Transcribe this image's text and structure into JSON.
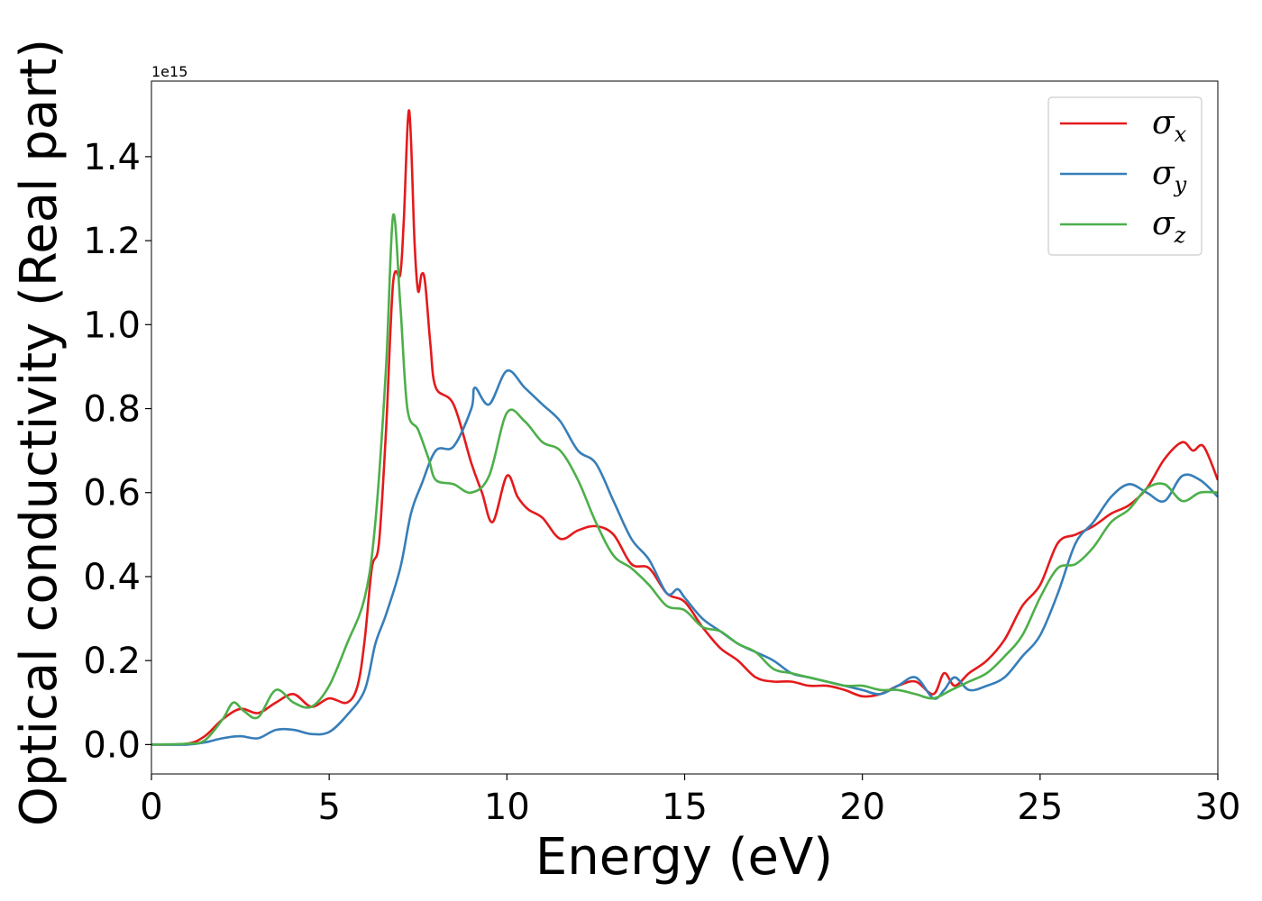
{
  "chart_data": {
    "type": "line",
    "title": "",
    "xlabel": "Energy (eV)",
    "ylabel": "Optical conductivity (Real part)",
    "y_offset_label": "1e15",
    "xlim": [
      0,
      30
    ],
    "ylim": [
      -0.07,
      1.58
    ],
    "x_ticks": [
      0,
      5,
      10,
      15,
      20,
      25,
      30
    ],
    "x_tick_labels": [
      "0",
      "5",
      "10",
      "15",
      "20",
      "25",
      "30"
    ],
    "y_ticks": [
      0.0,
      0.2,
      0.4,
      0.6,
      0.8,
      1.0,
      1.2,
      1.4
    ],
    "y_tick_labels": [
      "0.0",
      "0.2",
      "0.4",
      "0.6",
      "0.8",
      "1.0",
      "1.2",
      "1.4"
    ],
    "grid": false,
    "legend_position": "top-right",
    "series": [
      {
        "name": "σx",
        "legend_main": "σ",
        "legend_sub": "x",
        "color": "#e41a1c",
        "x": [
          0,
          1,
          1.5,
          2,
          2.5,
          3,
          3.5,
          4,
          4.5,
          5,
          5.5,
          5.8,
          6.0,
          6.2,
          6.4,
          6.6,
          6.8,
          7.0,
          7.1,
          7.25,
          7.4,
          7.5,
          7.6,
          7.7,
          7.85,
          8.0,
          8.5,
          9.0,
          9.3,
          9.6,
          10.0,
          10.3,
          10.6,
          11.0,
          11.5,
          12.0,
          12.5,
          13.0,
          13.5,
          14.0,
          14.5,
          15.0,
          15.5,
          16.0,
          16.5,
          17.0,
          17.5,
          18.0,
          18.5,
          19.0,
          19.5,
          20.0,
          20.5,
          21.0,
          21.5,
          22.0,
          22.3,
          22.6,
          23.0,
          23.5,
          24.0,
          24.5,
          25.0,
          25.5,
          26.0,
          26.5,
          27.0,
          27.5,
          28.0,
          28.5,
          29.0,
          29.3,
          29.6,
          30.0
        ],
        "y": [
          0.0,
          0.002,
          0.02,
          0.06,
          0.085,
          0.075,
          0.1,
          0.12,
          0.09,
          0.11,
          0.1,
          0.14,
          0.25,
          0.42,
          0.48,
          0.75,
          1.1,
          1.12,
          1.25,
          1.51,
          1.2,
          1.08,
          1.12,
          1.1,
          0.95,
          0.85,
          0.81,
          0.67,
          0.6,
          0.53,
          0.64,
          0.59,
          0.56,
          0.54,
          0.49,
          0.51,
          0.52,
          0.5,
          0.43,
          0.42,
          0.36,
          0.34,
          0.28,
          0.23,
          0.2,
          0.16,
          0.15,
          0.15,
          0.14,
          0.14,
          0.13,
          0.115,
          0.12,
          0.14,
          0.15,
          0.12,
          0.17,
          0.14,
          0.17,
          0.2,
          0.25,
          0.33,
          0.38,
          0.48,
          0.5,
          0.52,
          0.55,
          0.57,
          0.61,
          0.68,
          0.72,
          0.7,
          0.71,
          0.63
        ]
      },
      {
        "name": "σy",
        "legend_main": "σ",
        "legend_sub": "y",
        "color": "#377eb8",
        "x": [
          0,
          1,
          1.5,
          2,
          2.5,
          3,
          3.5,
          4,
          4.5,
          5,
          5.5,
          6.0,
          6.3,
          6.6,
          7.0,
          7.3,
          7.6,
          8.0,
          8.5,
          9.0,
          9.1,
          9.5,
          10.0,
          10.5,
          11.0,
          11.5,
          12.0,
          12.5,
          13.0,
          13.5,
          14.0,
          14.5,
          14.8,
          15.0,
          15.5,
          16.0,
          16.5,
          17.0,
          17.5,
          18.0,
          18.5,
          19.0,
          19.5,
          20.0,
          20.5,
          21.0,
          21.5,
          22.0,
          22.3,
          22.6,
          23.0,
          23.5,
          24.0,
          24.5,
          25.0,
          25.5,
          26.0,
          26.5,
          27.0,
          27.5,
          28.0,
          28.5,
          29.0,
          29.5,
          30.0
        ],
        "y": [
          0.0,
          0.0,
          0.005,
          0.015,
          0.02,
          0.015,
          0.035,
          0.035,
          0.025,
          0.03,
          0.07,
          0.13,
          0.24,
          0.31,
          0.42,
          0.55,
          0.62,
          0.7,
          0.71,
          0.8,
          0.85,
          0.81,
          0.89,
          0.85,
          0.81,
          0.77,
          0.7,
          0.67,
          0.58,
          0.49,
          0.44,
          0.36,
          0.37,
          0.35,
          0.3,
          0.27,
          0.24,
          0.22,
          0.2,
          0.17,
          0.16,
          0.15,
          0.14,
          0.13,
          0.12,
          0.14,
          0.16,
          0.11,
          0.13,
          0.16,
          0.13,
          0.14,
          0.16,
          0.21,
          0.26,
          0.36,
          0.48,
          0.53,
          0.59,
          0.62,
          0.6,
          0.58,
          0.64,
          0.63,
          0.59
        ]
      },
      {
        "name": "σz",
        "legend_main": "σ",
        "legend_sub": "z",
        "color": "#4daf4a",
        "x": [
          0,
          1,
          1.5,
          2,
          2.3,
          2.6,
          3.0,
          3.5,
          4.0,
          4.5,
          5.0,
          5.5,
          6.0,
          6.3,
          6.6,
          6.8,
          7.0,
          7.2,
          7.5,
          7.8,
          8.0,
          8.5,
          9.0,
          9.5,
          10.0,
          10.5,
          11.0,
          11.5,
          12.0,
          12.5,
          13.0,
          13.5,
          14.0,
          14.5,
          15.0,
          15.5,
          16.0,
          16.5,
          17.0,
          17.5,
          18.0,
          18.5,
          19.0,
          19.5,
          20.0,
          20.5,
          21.0,
          21.5,
          22.0,
          22.5,
          23.0,
          23.5,
          24.0,
          24.5,
          25.0,
          25.5,
          26.0,
          26.5,
          27.0,
          27.5,
          28.0,
          28.5,
          29.0,
          29.5,
          30.0
        ],
        "y": [
          0.0,
          0.002,
          0.01,
          0.06,
          0.1,
          0.08,
          0.065,
          0.13,
          0.1,
          0.09,
          0.14,
          0.24,
          0.35,
          0.53,
          0.9,
          1.26,
          1.05,
          0.8,
          0.75,
          0.68,
          0.63,
          0.62,
          0.6,
          0.64,
          0.79,
          0.77,
          0.72,
          0.7,
          0.63,
          0.53,
          0.45,
          0.42,
          0.38,
          0.33,
          0.32,
          0.28,
          0.27,
          0.24,
          0.22,
          0.18,
          0.17,
          0.16,
          0.15,
          0.14,
          0.14,
          0.13,
          0.13,
          0.12,
          0.11,
          0.13,
          0.15,
          0.17,
          0.21,
          0.26,
          0.35,
          0.42,
          0.43,
          0.47,
          0.53,
          0.56,
          0.61,
          0.62,
          0.58,
          0.6,
          0.6
        ]
      }
    ]
  }
}
